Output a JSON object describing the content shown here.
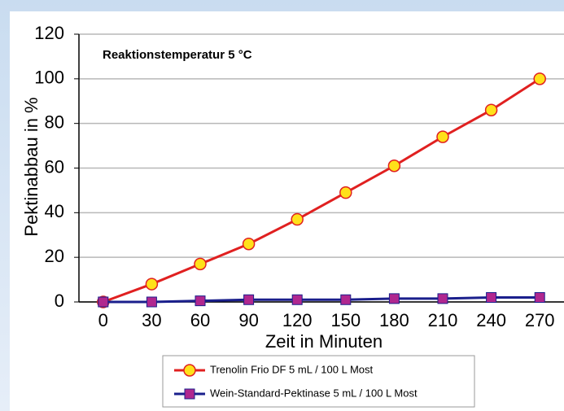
{
  "chart_data": {
    "type": "line",
    "annotation": "Reaktionstemperatur 5 °C",
    "x_label": "Zeit in Minuten",
    "y_label": "Pektinabbau in %",
    "categories": [
      "0",
      "30",
      "60",
      "90",
      "120",
      "150",
      "180",
      "210",
      "240",
      "270"
    ],
    "series": [
      {
        "name": "Trenolin Frio DF 5 mL / 100 L Most",
        "color": "#e02020",
        "marker": "circle",
        "marker_color": "#ffe11a",
        "values": [
          0,
          8,
          17,
          26,
          37,
          49,
          61,
          74,
          86,
          100
        ]
      },
      {
        "name": "Wein-Standard-Pektinase 5 mL / 100 L Most",
        "color": "#1a1f8c",
        "marker": "square",
        "marker_color": "#b0278f",
        "values": [
          0,
          0,
          0.5,
          1,
          1,
          1,
          1.5,
          1.5,
          2,
          2
        ]
      }
    ],
    "ylim": [
      0,
      120
    ],
    "yticks": [
      0,
      20,
      40,
      60,
      80,
      100,
      120
    ],
    "grid": true
  }
}
